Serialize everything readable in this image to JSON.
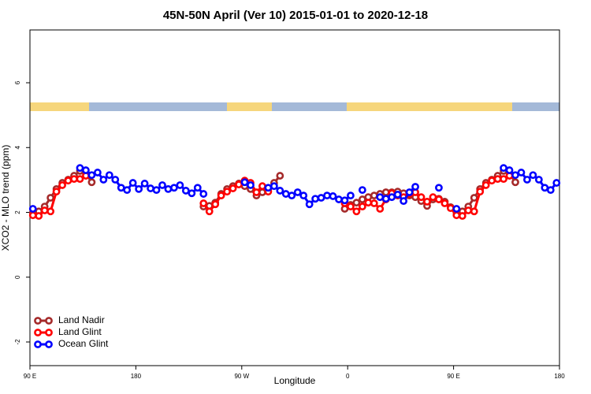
{
  "chart_data": {
    "type": "line",
    "title": "45N-50N April (Ver 10)   2015-01-01 to 2020-12-18",
    "x_label": "Longitude",
    "y_label": "XCO2 - MLO trend (ppm)",
    "xlim": [
      90,
      540
    ],
    "ylim": [
      -2.73,
      7.63
    ],
    "xticks": [
      {
        "value": 90,
        "label": "90 E"
      },
      180,
      {
        "value": 270,
        "label": "90 W"
      },
      {
        "value": 360,
        "label": "0"
      },
      {
        "value": 450,
        "label": "90 E"
      },
      {
        "value": 540,
        "label": "180"
      }
    ],
    "yticks": [
      -2,
      0,
      2,
      4,
      6
    ],
    "legend": "bottom-left",
    "series": [
      {
        "name": "Land Nadir",
        "color": "#a52a2a",
        "x": [
          92.5,
          97.5,
          102.5,
          107.5,
          112.5,
          117.5,
          122.5,
          127.5,
          132.5,
          137.5,
          142.5,
          147.5,
          237.5,
          242.5,
          247.5,
          252.5,
          257.5,
          262.5,
          267.5,
          272.5,
          277.5,
          282.5,
          287.5,
          292.5,
          297.5,
          302.5,
          307.5,
          357.5,
          362.5,
          367.5,
          372.5,
          377.5,
          382.5,
          387.5,
          392.5,
          397.5,
          402.5,
          407.5,
          412.5,
          417.5,
          422.5,
          427.5,
          432.5,
          437.5,
          442.5,
          447.5,
          452.5,
          457.5,
          462.5,
          467.5,
          472.5,
          477.5,
          482.5,
          487.5,
          492.5,
          497.5,
          502.5
        ],
        "values": [
          1.99,
          2.03,
          2.18,
          2.45,
          2.72,
          2.91,
          3.01,
          3.13,
          3.28,
          3.2,
          2.93,
          null,
          2.18,
          2.2,
          2.3,
          2.57,
          2.72,
          2.81,
          2.89,
          2.81,
          2.72,
          2.52,
          2.62,
          2.72,
          2.91,
          3.13,
          null,
          2.11,
          2.23,
          2.3,
          2.4,
          2.47,
          2.52,
          2.57,
          2.62,
          2.62,
          2.64,
          2.59,
          2.52,
          2.47,
          2.35,
          2.2,
          2.4,
          2.42,
          2.33,
          2.16,
          1.99,
          2.03,
          2.18,
          2.45,
          2.72,
          2.91,
          3.01,
          3.13,
          3.28,
          3.2,
          2.93
        ]
      },
      {
        "name": "Land Glint",
        "color": "#ff0000",
        "x": [
          92.5,
          97.5,
          102.5,
          107.5,
          112.5,
          117.5,
          122.5,
          127.5,
          132.5,
          137.5,
          142.5,
          237.5,
          242.5,
          247.5,
          252.5,
          257.5,
          262.5,
          267.5,
          272.5,
          277.5,
          282.5,
          287.5,
          292.5,
          297.5,
          357.5,
          362.5,
          367.5,
          372.5,
          377.5,
          382.5,
          387.5,
          392.5,
          397.5,
          402.5,
          407.5,
          412.5,
          417.5,
          422.5,
          427.5,
          432.5,
          437.5,
          442.5,
          447.5,
          452.5,
          457.5,
          462.5,
          467.5,
          472.5,
          477.5,
          482.5,
          487.5,
          492.5,
          497.5
        ],
        "values": [
          1.91,
          1.89,
          2.06,
          2.03,
          2.64,
          2.84,
          2.98,
          3.03,
          3.03,
          3.13,
          null,
          2.28,
          2.03,
          2.25,
          2.52,
          2.64,
          2.74,
          2.86,
          2.98,
          2.91,
          2.62,
          2.81,
          2.64,
          null,
          2.28,
          2.18,
          2.03,
          2.18,
          2.3,
          2.28,
          2.11,
          2.4,
          2.59,
          2.52,
          2.47,
          2.57,
          2.62,
          2.47,
          2.33,
          2.47,
          2.4,
          2.28,
          2.13,
          1.91,
          1.89,
          2.06,
          2.03,
          2.64,
          2.84,
          2.98,
          3.03,
          3.03,
          3.13
        ]
      },
      {
        "name": "Ocean Glint",
        "color": "#0000ff",
        "x": [
          92.5,
          97.5,
          132.5,
          137.5,
          142.5,
          147.5,
          152.5,
          157.5,
          162.5,
          167.5,
          172.5,
          177.5,
          182.5,
          187.5,
          192.5,
          197.5,
          202.5,
          207.5,
          212.5,
          217.5,
          222.5,
          227.5,
          232.5,
          237.5,
          242.5,
          272.5,
          277.5,
          282.5,
          292.5,
          297.5,
          302.5,
          307.5,
          312.5,
          317.5,
          322.5,
          327.5,
          332.5,
          337.5,
          342.5,
          347.5,
          352.5,
          357.5,
          362.5,
          367.5,
          372.5,
          377.5,
          387.5,
          392.5,
          397.5,
          402.5,
          407.5,
          412.5,
          417.5,
          422.5,
          437.5,
          442.5,
          452.5,
          457.5,
          492.5,
          497.5,
          502.5,
          507.5,
          512.5,
          517.5,
          522.5,
          527.5,
          532.5,
          537.5
        ],
        "values": [
          2.11,
          null,
          3.37,
          3.3,
          3.15,
          3.23,
          3.01,
          3.15,
          3.01,
          2.76,
          2.69,
          2.91,
          2.72,
          2.89,
          2.74,
          2.69,
          2.84,
          2.72,
          2.76,
          2.84,
          2.67,
          2.59,
          2.76,
          2.57,
          null,
          2.93,
          2.84,
          null,
          2.76,
          2.81,
          2.67,
          2.57,
          2.52,
          2.62,
          2.52,
          2.25,
          2.42,
          2.45,
          2.52,
          2.5,
          2.4,
          2.37,
          2.52,
          null,
          2.69,
          null,
          2.47,
          2.42,
          2.47,
          2.55,
          2.35,
          2.62,
          2.79,
          null,
          2.76,
          null,
          2.11,
          null,
          3.37,
          3.3,
          3.15,
          3.23,
          3.01,
          3.15,
          3.01,
          2.76,
          2.69,
          2.91
        ]
      }
    ]
  }
}
